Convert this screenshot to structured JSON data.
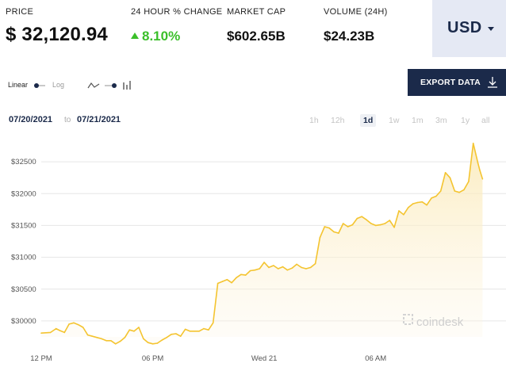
{
  "stats": {
    "price": {
      "label": "PRICE",
      "value": "$ 32,120.94"
    },
    "change": {
      "label": "24 HOUR % CHANGE",
      "value": "8.10%"
    },
    "market_cap": {
      "label": "MARKET CAP",
      "value": "$602.65B"
    },
    "volume": {
      "label": "VOLUME (24H)",
      "value": "$24.23B"
    }
  },
  "currency": {
    "selected": "USD"
  },
  "scale_toggle": {
    "linear": "Linear",
    "log": "Log"
  },
  "chart_type_toggle": {
    "line_icon": "line-chart-icon",
    "bar_icon": "bar-chart-icon"
  },
  "export": {
    "label": "EXPORT DATA",
    "icon": "download-icon"
  },
  "date_range": {
    "from": "07/20/2021",
    "to_word": "to",
    "to": "07/21/2021"
  },
  "periods": [
    {
      "label": "1h",
      "active": false
    },
    {
      "label": "12h",
      "active": false
    },
    {
      "label": "1d",
      "active": true
    },
    {
      "label": "1w",
      "active": false
    },
    {
      "label": "1m",
      "active": false
    },
    {
      "label": "3m",
      "active": false
    },
    {
      "label": "1y",
      "active": false
    },
    {
      "label": "all",
      "active": false
    }
  ],
  "watermark": "coindesk",
  "colors": {
    "line": "#f4c430",
    "area": "#fdf3d9",
    "accent": "#1b2a4a",
    "positive": "#3bbf2a"
  },
  "chart_data": {
    "type": "area",
    "title": "",
    "xlabel": "",
    "ylabel": "",
    "ylim": [
      29750,
      32800
    ],
    "xlim": [
      0,
      24.5
    ],
    "grid": true,
    "y_ticks": [
      {
        "value": 30000,
        "label": "$30000"
      },
      {
        "value": 30500,
        "label": "$30500"
      },
      {
        "value": 31000,
        "label": "$31000"
      },
      {
        "value": 31500,
        "label": "$31500"
      },
      {
        "value": 32000,
        "label": "$32000"
      },
      {
        "value": 32500,
        "label": "$32500"
      }
    ],
    "x_ticks": [
      {
        "value": 0,
        "label": "12 PM"
      },
      {
        "value": 6,
        "label": "06 PM"
      },
      {
        "value": 12,
        "label": "Wed 21"
      },
      {
        "value": 18,
        "label": "06 AM"
      }
    ],
    "series": [
      {
        "x": [
          0,
          0.5,
          0.8,
          1.0,
          1.25,
          1.5,
          1.75,
          2.0,
          2.25,
          2.5,
          2.75,
          3.0,
          3.25,
          3.5,
          3.75,
          4.0,
          4.25,
          4.5,
          4.75,
          5.0,
          5.25,
          5.5,
          5.75,
          6.0,
          6.25,
          6.5,
          6.75,
          7.0,
          7.25,
          7.5,
          7.75,
          8.0,
          8.25,
          8.5,
          8.75,
          9.0,
          9.25,
          9.5,
          9.75,
          10.0,
          10.25,
          10.5,
          10.75,
          11.0,
          11.25,
          11.5,
          11.75,
          12.0,
          12.25,
          12.5,
          12.75,
          13.0,
          13.25,
          13.5,
          13.75,
          14.0,
          14.25,
          14.5,
          14.75,
          15.0,
          15.25,
          15.5,
          15.75,
          16.0,
          16.25,
          16.5,
          16.75,
          17.0,
          17.25,
          17.5,
          17.75,
          18.0,
          18.25,
          18.5,
          18.75,
          19.0,
          19.25,
          19.5,
          19.75,
          20.0,
          20.25,
          20.5,
          20.75,
          21.0,
          21.25,
          21.5,
          21.75,
          22.0,
          22.25,
          22.5,
          22.75,
          23.0,
          23.25,
          23.5,
          23.6,
          23.75
        ],
        "y": [
          29810,
          29820,
          29880,
          29850,
          29820,
          29950,
          29970,
          29940,
          29900,
          29780,
          29760,
          29740,
          29720,
          29690,
          29690,
          29640,
          29680,
          29740,
          29860,
          29840,
          29900,
          29720,
          29660,
          29640,
          29650,
          29700,
          29740,
          29790,
          29800,
          29760,
          29870,
          29840,
          29840,
          29840,
          29880,
          29860,
          29970,
          30590,
          30620,
          30650,
          30600,
          30680,
          30730,
          30720,
          30790,
          30800,
          30820,
          30920,
          30840,
          30870,
          30820,
          30850,
          30800,
          30830,
          30890,
          30840,
          30820,
          30840,
          30900,
          31310,
          31480,
          31460,
          31400,
          31380,
          31530,
          31480,
          31510,
          31610,
          31640,
          31590,
          31530,
          31500,
          31510,
          31530,
          31580,
          31470,
          31730,
          31670,
          31780,
          31840,
          31860,
          31870,
          31820,
          31930,
          31960,
          32040,
          32330,
          32250,
          32040,
          32020,
          32060,
          32190,
          32790,
          32480,
          32370,
          32230
        ]
      }
    ]
  }
}
